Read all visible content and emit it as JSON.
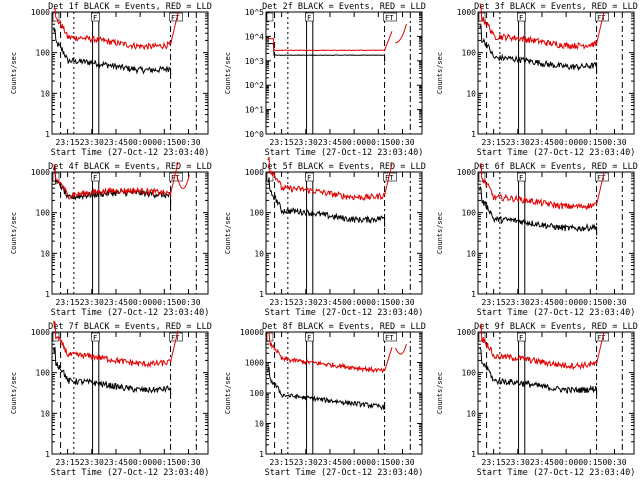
{
  "colors": {
    "events": "#000000",
    "lld": "#e00000",
    "axes": "#000000",
    "background": "#ffffff"
  },
  "chart_data": [
    {
      "type": "line",
      "title": "Det 1f BLACK = Events, RED = LLD",
      "xlabel": "Start Time (27-Oct-12 23:03:40)",
      "ylabel": "Counts/sec",
      "yscale": "log",
      "ylim": [
        1,
        1000
      ],
      "yticks": [
        "1",
        "10",
        "100",
        "1000"
      ],
      "xticks": [
        "23:15",
        "23:30",
        "23:45",
        "00:00",
        "00:15",
        "00:30"
      ],
      "markers": [
        "F",
        "FT"
      ],
      "shape": "A",
      "series": [
        {
          "name": "Events",
          "level": 50
        },
        {
          "name": "LLD",
          "level": 190
        }
      ]
    },
    {
      "type": "line",
      "title": "Det 2f BLACK = Events, RED = LLD",
      "xlabel": "Start Time (27-Oct-12 23:03:40)",
      "ylabel": "Counts/sec",
      "yscale": "log",
      "ylim": [
        1,
        100000
      ],
      "yticks": [
        "10^0",
        "10^1",
        "10^2",
        "10^3",
        "10^4",
        "10^5"
      ],
      "xticks": [
        "23:15",
        "23:30",
        "23:45",
        "00:00",
        "00:15",
        "00:30"
      ],
      "markers": [
        "F",
        "FT"
      ],
      "shape": "B",
      "series": [
        {
          "name": "Events",
          "level": 1700
        },
        {
          "name": "LLD",
          "level": 2700
        }
      ]
    },
    {
      "type": "line",
      "title": "Det 3f BLACK = Events, RED = LLD",
      "xlabel": "Start Time (27-Oct-12 23:03:40)",
      "ylabel": "Counts/sec",
      "yscale": "log",
      "ylim": [
        1,
        1000
      ],
      "yticks": [
        "1",
        "10",
        "100",
        "1000"
      ],
      "xticks": [
        "23:15",
        "23:30",
        "23:45",
        "00:00",
        "00:15",
        "00:30"
      ],
      "markers": [
        "F",
        "FT"
      ],
      "shape": "A",
      "series": [
        {
          "name": "Events",
          "level": 60
        },
        {
          "name": "LLD",
          "level": 200
        }
      ]
    },
    {
      "type": "line",
      "title": "Det 4f BLACK = Events, RED = LLD",
      "xlabel": "Start Time (27-Oct-12 23:03:40)",
      "ylabel": "Counts/sec",
      "yscale": "log",
      "ylim": [
        1,
        1000
      ],
      "yticks": [
        "1",
        "10",
        "100",
        "1000"
      ],
      "xticks": [
        "23:15",
        "23:30",
        "23:45",
        "00:00",
        "00:15",
        "00:30"
      ],
      "markers": [
        "F",
        "FT"
      ],
      "shape": "C",
      "series": [
        {
          "name": "Events",
          "level": 230
        },
        {
          "name": "LLD",
          "level": 260
        }
      ]
    },
    {
      "type": "line",
      "title": "Det 5f BLACK = Events, RED = LLD",
      "xlabel": "Start Time (27-Oct-12 23:03:40)",
      "ylabel": "Counts/sec",
      "yscale": "log",
      "ylim": [
        1,
        1000
      ],
      "yticks": [
        "1",
        "10",
        "100",
        "1000"
      ],
      "xticks": [
        "23:15",
        "23:30",
        "23:45",
        "00:00",
        "00:15",
        "00:30"
      ],
      "markers": [
        "F",
        "FT"
      ],
      "shape": "A",
      "series": [
        {
          "name": "Events",
          "level": 90
        },
        {
          "name": "LLD",
          "level": 320
        }
      ]
    },
    {
      "type": "line",
      "title": "Det 6f BLACK = Events, RED = LLD",
      "xlabel": "Start Time (27-Oct-12 23:03:40)",
      "ylabel": "Counts/sec",
      "yscale": "log",
      "ylim": [
        1,
        1000
      ],
      "yticks": [
        "1",
        "10",
        "100",
        "1000"
      ],
      "xticks": [
        "23:15",
        "23:30",
        "23:45",
        "00:00",
        "00:15",
        "00:30"
      ],
      "markers": [
        "F",
        "FT"
      ],
      "shape": "A",
      "series": [
        {
          "name": "Events",
          "level": 55
        },
        {
          "name": "LLD",
          "level": 190
        }
      ]
    },
    {
      "type": "line",
      "title": "Det 7f BLACK = Events, RED = LLD",
      "xlabel": "Start Time (27-Oct-12 23:03:40)",
      "ylabel": "Counts/sec",
      "yscale": "log",
      "ylim": [
        1,
        1000
      ],
      "yticks": [
        "1",
        "10",
        "100",
        "1000"
      ],
      "xticks": [
        "23:15",
        "23:30",
        "23:45",
        "00:00",
        "00:15",
        "00:30"
      ],
      "markers": [
        "F",
        "FT"
      ],
      "shape": "A",
      "series": [
        {
          "name": "Events",
          "level": 50
        },
        {
          "name": "LLD",
          "level": 220
        }
      ]
    },
    {
      "type": "line",
      "title": "Det 8f BLACK = Events, RED = LLD",
      "xlabel": "Start Time (27-Oct-12 23:03:40)",
      "ylabel": "Counts/sec",
      "yscale": "log",
      "ylim": [
        1,
        10000
      ],
      "yticks": [
        "1",
        "10",
        "100",
        "1000",
        "10000"
      ],
      "xticks": [
        "23:15",
        "23:30",
        "23:45",
        "00:00",
        "00:15",
        "00:30"
      ],
      "markers": [
        "F",
        "FT"
      ],
      "shape": "D",
      "series": [
        {
          "name": "Events",
          "level": 100
        },
        {
          "name": "LLD",
          "level": 1500
        }
      ]
    },
    {
      "type": "line",
      "title": "Det 9f BLACK = Events, RED = LLD",
      "xlabel": "Start Time (27-Oct-12 23:03:40)",
      "ylabel": "Counts/sec",
      "yscale": "log",
      "ylim": [
        1,
        1000
      ],
      "yticks": [
        "1",
        "10",
        "100",
        "1000"
      ],
      "xticks": [
        "23:15",
        "23:30",
        "23:45",
        "00:00",
        "00:15",
        "00:30"
      ],
      "markers": [
        "F",
        "FT"
      ],
      "shape": "A",
      "series": [
        {
          "name": "Events",
          "level": 50
        },
        {
          "name": "LLD",
          "level": 200
        }
      ]
    }
  ]
}
